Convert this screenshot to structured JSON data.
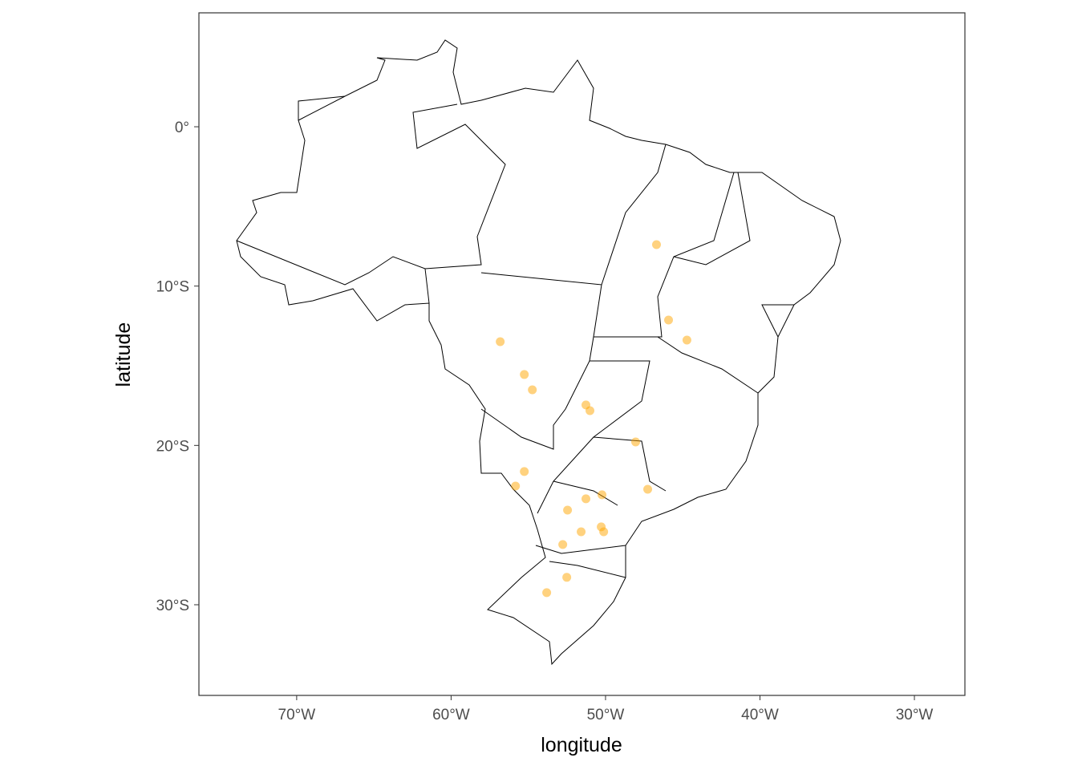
{
  "chart_data": {
    "type": "scatter",
    "x_label": "longitude",
    "y_label": "latitude",
    "x": [
      -46.7,
      -45.92,
      -44.73,
      -56.82,
      -55.26,
      -54.74,
      -51.27,
      -51.01,
      -48.05,
      -55.26,
      -55.83,
      -50.23,
      -51.27,
      -47.27,
      -52.46,
      -50.28,
      -51.58,
      -50.12,
      -52.77,
      -52.51,
      -53.81
    ],
    "values": [
      -7.4,
      -12.13,
      -13.39,
      -13.49,
      -15.55,
      -16.51,
      -17.46,
      -17.82,
      -19.78,
      -21.64,
      -22.55,
      -23.1,
      -23.35,
      -22.75,
      -24.06,
      -25.11,
      -25.42,
      -25.42,
      -26.22,
      -28.28,
      -29.24
    ],
    "color": "#FFA500",
    "alpha": 0.5,
    "xlim": [
      -76.33,
      -26.73
    ],
    "ylim": [
      -35.69,
      7.15
    ],
    "xticks": [
      {
        "value": -70,
        "label": "70°W"
      },
      {
        "value": -60,
        "label": "60°W"
      },
      {
        "value": -50,
        "label": "50°W"
      },
      {
        "value": -40,
        "label": "40°W"
      },
      {
        "value": -30,
        "label": "30°W"
      }
    ],
    "yticks": [
      {
        "value": 0,
        "label": "0°"
      },
      {
        "value": -10,
        "label": "10°S"
      },
      {
        "value": -20,
        "label": "20°S"
      },
      {
        "value": -30,
        "label": "30°S"
      }
    ]
  }
}
